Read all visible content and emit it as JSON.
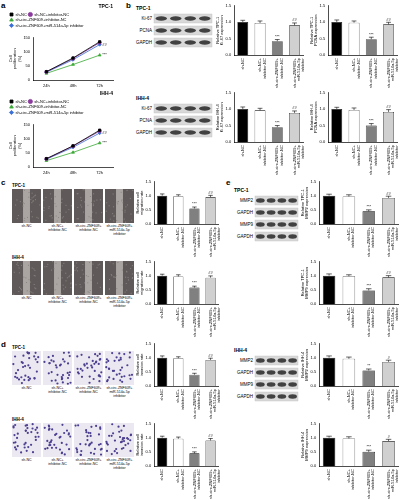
{
  "chart_data": [
    {
      "type": "line",
      "title": "TPC-1",
      "categories": [
        "24h",
        "48h",
        "72h"
      ],
      "y_label": "Cell proliferation (%)",
      "ylim": [
        0,
        150
      ],
      "yticks": [
        0,
        50,
        100,
        150
      ],
      "grid": false,
      "legend": "top-left",
      "series": [
        {
          "name": "sh-NC",
          "color": "#000000",
          "marker": "square",
          "values": [
            30,
            78,
            135
          ]
        },
        {
          "name": "sh-NC+inhibitor-NC",
          "color": "#8b3a9e",
          "marker": "circle",
          "values": [
            29,
            76,
            132
          ]
        },
        {
          "name": "sh-circ-ZNF609+inhibitor-NC",
          "color": "#3aaa35",
          "marker": "triangle",
          "values": [
            24,
            55,
            88
          ],
          "annotation": "***"
        },
        {
          "name": "sh-circ-ZNF609+miR-514a-5p inhibitor",
          "color": "#3b6fd8",
          "marker": "diamond",
          "values": [
            28,
            72,
            125
          ],
          "annotation": "##"
        }
      ]
    },
    {
      "type": "line",
      "title": "IHH-4",
      "categories": [
        "24h",
        "48h",
        "72h"
      ],
      "y_label": "Cell proliferation (%)",
      "ylim": [
        0,
        150
      ],
      "yticks": [
        0,
        50,
        100,
        150
      ],
      "grid": false,
      "legend": "top-left",
      "series": [
        {
          "name": "sh-NC",
          "color": "#000000",
          "marker": "square",
          "values": [
            30,
            75,
            130
          ]
        },
        {
          "name": "sh-NC+inhibitor-NC",
          "color": "#8b3a9e",
          "marker": "circle",
          "values": [
            29,
            74,
            127
          ]
        },
        {
          "name": "sh-circ-ZNF609+inhibitor-NC",
          "color": "#3aaa35",
          "marker": "triangle",
          "values": [
            23,
            52,
            85
          ],
          "annotation": "***"
        },
        {
          "name": "sh-circ-ZNF609+miR-514a-5p inhibitor",
          "color": "#3b6fd8",
          "marker": "diamond",
          "values": [
            28,
            70,
            120
          ],
          "annotation": "##"
        }
      ]
    },
    {
      "type": "bar",
      "y_label": "Relative TPC-1 Ki-67 expression",
      "categories": [
        "sh-NC",
        "sh-NC+inhibitor-NC",
        "sh-circ-ZNF609+inhibitor-NC",
        "sh-circ-ZNF609+miR-514a-5p inhibitor"
      ],
      "values": [
        1.0,
        0.97,
        0.42,
        0.9
      ],
      "errors": [
        0.05,
        0.06,
        0.05,
        0.07
      ],
      "annotations": [
        null,
        null,
        "***",
        "##"
      ],
      "colors": [
        "#000000",
        "#ffffff",
        "#808080",
        "#d0d0d0"
      ],
      "ylim": [
        0,
        1.5
      ],
      "yticks": [
        {
          "value": 0,
          "label": "0.0"
        },
        {
          "value": 0.5,
          "label": "0.5"
        },
        {
          "value": 1,
          "label": "1.0"
        },
        {
          "value": 1.5,
          "label": "1.5"
        }
      ],
      "grid": false
    },
    {
      "type": "bar",
      "y_label": "Relative TPC-1 PCNA expression",
      "categories": [
        "sh-NC",
        "sh-NC+inhibitor-NC",
        "sh-circ-ZNF609+inhibitor-NC",
        "sh-circ-ZNF609+miR-514a-5p inhibitor"
      ],
      "values": [
        1.0,
        0.98,
        0.48,
        0.93
      ],
      "errors": [
        0.06,
        0.05,
        0.06,
        0.06
      ],
      "annotations": [
        null,
        null,
        "***",
        "##"
      ],
      "colors": [
        "#000000",
        "#ffffff",
        "#808080",
        "#d0d0d0"
      ],
      "ylim": [
        0,
        1.5
      ],
      "yticks": [
        {
          "value": 0,
          "label": "0.0"
        },
        {
          "value": 0.5,
          "label": "0.5"
        },
        {
          "value": 1,
          "label": "1.0"
        },
        {
          "value": 1.5,
          "label": "1.5"
        }
      ],
      "grid": false
    },
    {
      "type": "bar",
      "y_label": "Relative IHH-4 Ki-67 expression",
      "categories": [
        "sh-NC",
        "sh-NC+inhibitor-NC",
        "sh-circ-ZNF609+inhibitor-NC",
        "sh-circ-ZNF609+miR-514a-5p inhibitor"
      ],
      "values": [
        1.0,
        0.96,
        0.45,
        0.88
      ],
      "errors": [
        0.06,
        0.06,
        0.05,
        0.06
      ],
      "annotations": [
        null,
        null,
        "***",
        "##"
      ],
      "colors": [
        "#000000",
        "#ffffff",
        "#808080",
        "#d0d0d0"
      ],
      "ylim": [
        0,
        1.5
      ],
      "yticks": [
        {
          "value": 0,
          "label": "0.0"
        },
        {
          "value": 0.5,
          "label": "0.5"
        },
        {
          "value": 1,
          "label": "1.0"
        },
        {
          "value": 1.5,
          "label": "1.5"
        }
      ],
      "grid": false
    },
    {
      "type": "bar",
      "y_label": "Relative IHH-4 PCNA expression",
      "categories": [
        "sh-NC",
        "sh-NC+inhibitor-NC",
        "sh-circ-ZNF609+inhibitor-NC",
        "sh-circ-ZNF609+miR-514a-5p inhibitor"
      ],
      "values": [
        1.0,
        0.97,
        0.5,
        0.91
      ],
      "errors": [
        0.05,
        0.06,
        0.06,
        0.07
      ],
      "annotations": [
        null,
        null,
        "***",
        "##"
      ],
      "colors": [
        "#000000",
        "#ffffff",
        "#808080",
        "#d0d0d0"
      ],
      "ylim": [
        0,
        1.5
      ],
      "yticks": [
        {
          "value": 0,
          "label": "0.0"
        },
        {
          "value": 0.5,
          "label": "0.5"
        },
        {
          "value": 1,
          "label": "1.0"
        },
        {
          "value": 1.5,
          "label": "1.5"
        }
      ],
      "grid": false
    },
    {
      "type": "bar",
      "y_label": "Relative cell migration rate",
      "categories": [
        "sh-NC",
        "sh-NC+inhibitor-NC",
        "sh-circ-ZNF609+inhibitor-NC",
        "sh-circ-ZNF609+miR-514a-5p inhibitor"
      ],
      "values": [
        1.0,
        0.98,
        0.55,
        0.95
      ],
      "errors": [
        0.06,
        0.05,
        0.05,
        0.06
      ],
      "annotations": [
        null,
        null,
        "***",
        "##"
      ],
      "colors": [
        "#000000",
        "#ffffff",
        "#808080",
        "#d0d0d0"
      ],
      "ylim": [
        0,
        1.5
      ],
      "yticks": [
        {
          "value": 0,
          "label": "0.0"
        },
        {
          "value": 0.5,
          "label": "0.5"
        },
        {
          "value": 1,
          "label": "1.0"
        },
        {
          "value": 1.5,
          "label": "1.5"
        }
      ],
      "grid": false
    },
    {
      "type": "bar",
      "y_label": "Relative cell migration rate",
      "categories": [
        "sh-NC",
        "sh-NC+inhibitor-NC",
        "sh-circ-ZNF609+inhibitor-NC",
        "sh-circ-ZNF609+miR-514a-5p inhibitor"
      ],
      "values": [
        1.0,
        0.97,
        0.58,
        0.93
      ],
      "errors": [
        0.05,
        0.06,
        0.05,
        0.06
      ],
      "annotations": [
        null,
        null,
        "***",
        "##"
      ],
      "colors": [
        "#000000",
        "#ffffff",
        "#808080",
        "#d0d0d0"
      ],
      "ylim": [
        0,
        1.5
      ],
      "yticks": [
        {
          "value": 0,
          "label": "0.0"
        },
        {
          "value": 0.5,
          "label": "0.5"
        },
        {
          "value": 1,
          "label": "1.0"
        },
        {
          "value": 1.5,
          "label": "1.5"
        }
      ],
      "grid": false
    },
    {
      "type": "bar",
      "y_label": "Relative cell invasion rate",
      "categories": [
        "sh-NC",
        "sh-NC+inhibitor-NC",
        "sh-circ-ZNF609+inhibitor-NC",
        "sh-circ-ZNF609+miR-514a-5p inhibitor"
      ],
      "values": [
        1.0,
        0.98,
        0.4,
        0.92
      ],
      "errors": [
        0.06,
        0.05,
        0.05,
        0.06
      ],
      "annotations": [
        null,
        null,
        "***",
        "##"
      ],
      "colors": [
        "#000000",
        "#ffffff",
        "#808080",
        "#d0d0d0"
      ],
      "ylim": [
        0,
        1.5
      ],
      "yticks": [
        {
          "value": 0,
          "label": "0.0"
        },
        {
          "value": 0.5,
          "label": "0.5"
        },
        {
          "value": 1,
          "label": "1.0"
        },
        {
          "value": 1.5,
          "label": "1.5"
        }
      ],
      "grid": false
    },
    {
      "type": "bar",
      "y_label": "Relative cell invasion rate",
      "categories": [
        "sh-NC",
        "sh-NC+inhibitor-NC",
        "sh-circ-ZNF609+inhibitor-NC",
        "sh-circ-ZNF609+miR-514a-5p inhibitor"
      ],
      "values": [
        1.0,
        0.96,
        0.45,
        0.9
      ],
      "errors": [
        0.05,
        0.06,
        0.05,
        0.07
      ],
      "annotations": [
        null,
        null,
        "***",
        "##"
      ],
      "colors": [
        "#000000",
        "#ffffff",
        "#808080",
        "#d0d0d0"
      ],
      "ylim": [
        0,
        1.5
      ],
      "yticks": [
        {
          "value": 0,
          "label": "0.0"
        },
        {
          "value": 0.5,
          "label": "0.5"
        },
        {
          "value": 1,
          "label": "1.0"
        },
        {
          "value": 1.5,
          "label": "1.5"
        }
      ],
      "grid": false
    },
    {
      "type": "bar",
      "y_label": "Relative TPC-1 MMP2 expression",
      "categories": [
        "sh-NC",
        "sh-NC+inhibitor-NC",
        "sh-circ-ZNF609+inhibitor-NC",
        "sh-circ-ZNF609+miR-514a-5p inhibitor"
      ],
      "values": [
        1.0,
        0.97,
        0.45,
        0.92
      ],
      "errors": [
        0.05,
        0.06,
        0.05,
        0.06
      ],
      "annotations": [
        null,
        null,
        "***",
        "##"
      ],
      "colors": [
        "#000000",
        "#ffffff",
        "#808080",
        "#d0d0d0"
      ],
      "ylim": [
        0,
        1.5
      ],
      "yticks": [
        {
          "value": 0,
          "label": "0.0"
        },
        {
          "value": 0.5,
          "label": "0.5"
        },
        {
          "value": 1,
          "label": "1.0"
        },
        {
          "value": 1.5,
          "label": "1.5"
        }
      ],
      "grid": false
    },
    {
      "type": "bar",
      "y_label": "Relative TPC-1 MMP9 expression",
      "categories": [
        "sh-NC",
        "sh-NC+inhibitor-NC",
        "sh-circ-ZNF609+inhibitor-NC",
        "sh-circ-ZNF609+miR-514a-5p inhibitor"
      ],
      "values": [
        1.0,
        0.98,
        0.48,
        0.94
      ],
      "errors": [
        0.06,
        0.05,
        0.06,
        0.06
      ],
      "annotations": [
        null,
        null,
        "***",
        "##"
      ],
      "colors": [
        "#000000",
        "#ffffff",
        "#808080",
        "#d0d0d0"
      ],
      "ylim": [
        0,
        1.5
      ],
      "yticks": [
        {
          "value": 0,
          "label": "0.0"
        },
        {
          "value": 0.5,
          "label": "0.5"
        },
        {
          "value": 1,
          "label": "1.0"
        },
        {
          "value": 1.5,
          "label": "1.5"
        }
      ],
      "grid": false
    },
    {
      "type": "bar",
      "y_label": "Relative IHH-4 MMP2 expression",
      "categories": [
        "sh-NC",
        "sh-NC+inhibitor-NC",
        "sh-circ-ZNF609+inhibitor-NC",
        "sh-circ-ZNF609+miR-514a-5p inhibitor"
      ],
      "values": [
        1.0,
        0.96,
        0.55,
        0.85
      ],
      "errors": [
        0.06,
        0.06,
        0.05,
        0.06
      ],
      "annotations": [
        null,
        null,
        "**",
        "#"
      ],
      "colors": [
        "#000000",
        "#ffffff",
        "#808080",
        "#d0d0d0"
      ],
      "ylim": [
        0,
        1.5
      ],
      "yticks": [
        {
          "value": 0,
          "label": "0.0"
        },
        {
          "value": 0.5,
          "label": "0.5"
        },
        {
          "value": 1,
          "label": "1.0"
        },
        {
          "value": 1.5,
          "label": "1.5"
        }
      ],
      "grid": false
    },
    {
      "type": "bar",
      "y_label": "Relative IHH-4 MMP9 expression",
      "categories": [
        "sh-NC",
        "sh-NC+inhibitor-NC",
        "sh-circ-ZNF609+inhibitor-NC",
        "sh-circ-ZNF609+miR-514a-5p inhibitor"
      ],
      "values": [
        1.0,
        0.97,
        0.5,
        0.88
      ],
      "errors": [
        0.05,
        0.06,
        0.06,
        0.06
      ],
      "annotations": [
        null,
        null,
        "***",
        "#"
      ],
      "colors": [
        "#000000",
        "#ffffff",
        "#808080",
        "#d0d0d0"
      ],
      "ylim": [
        0,
        1.5
      ],
      "yticks": [
        {
          "value": 0,
          "label": "0.0"
        },
        {
          "value": 0.5,
          "label": "0.5"
        },
        {
          "value": 1,
          "label": "1.0"
        },
        {
          "value": 1.5,
          "label": "1.5"
        }
      ],
      "grid": false
    }
  ],
  "panel_labels": [
    "a",
    "b",
    "c",
    "d",
    "e"
  ],
  "blots": [
    {
      "cell": "TPC-1",
      "bands": [
        "Ki-67",
        "PCNA",
        "GAPDH"
      ]
    },
    {
      "cell": "IHH-4",
      "bands": [
        "Ki-67",
        "PCNA",
        "GAPDH"
      ]
    },
    {
      "cell": "TPC-1",
      "bands": [
        "MMP2",
        "GAPDH",
        "MMP9",
        "GAPDH"
      ]
    },
    {
      "cell": "IHH-4",
      "bands": [
        "MMP2",
        "GAPDH",
        "MMP9",
        "GAPDH"
      ]
    }
  ],
  "images": [
    {
      "cell": "TPC-1",
      "labels": [
        "sh-NC",
        "sh-NC+inhibitor-NC",
        "sh-circ-ZNF609+inhibitor-NC",
        "sh-circ-ZNF609+miR-514a-5p inhibitor"
      ]
    },
    {
      "cell": "IHH-4",
      "labels": [
        "sh-NC",
        "sh-NC+inhibitor-NC",
        "sh-circ-ZNF609+inhibitor-NC",
        "sh-circ-ZNF609+miR-514a-5p inhibitor"
      ]
    },
    {
      "cell": "TPC-1",
      "labels": [
        "sh-NC",
        "sh-NC+inhibitor-NC",
        "sh-circ-ZNF609+inhibitor-NC",
        "sh-circ-ZNF609+miR-514a-5p inhibitor"
      ]
    },
    {
      "cell": "IHH-4",
      "labels": [
        "sh-NC",
        "sh-NC+inhibitor-NC",
        "sh-circ-ZNF609+inhibitor-NC",
        "sh-circ-ZNF609+miR-514a-5p inhibitor"
      ]
    }
  ]
}
